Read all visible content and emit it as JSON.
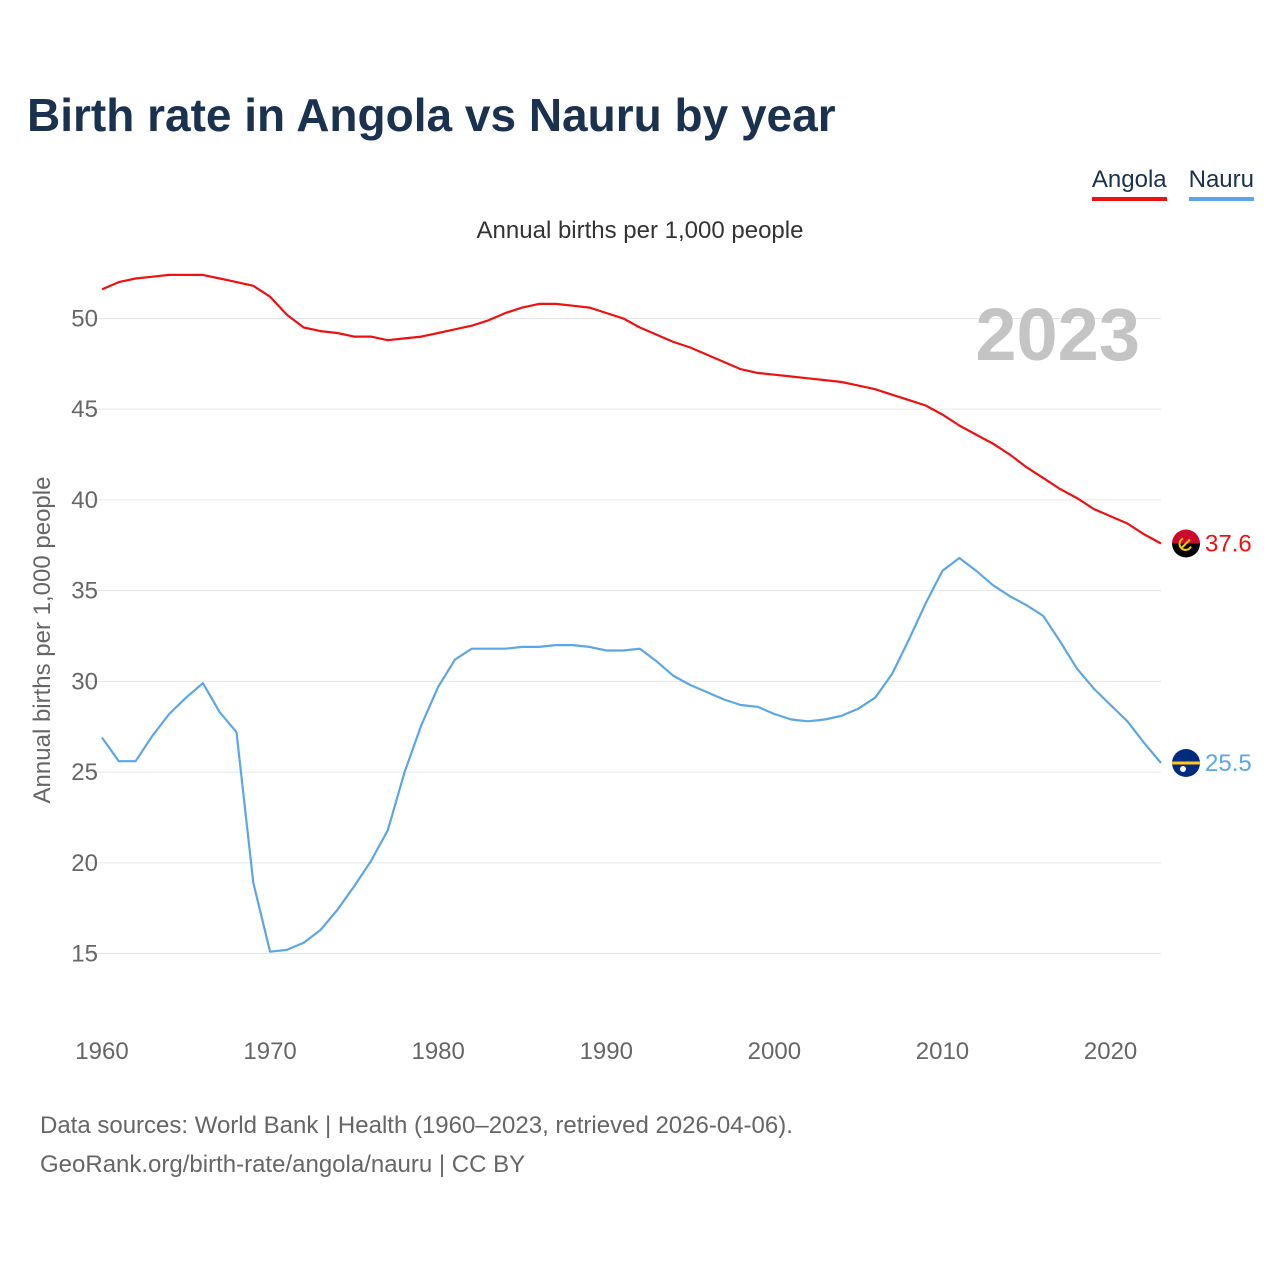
{
  "title": "Birth rate in Angola vs Nauru by year",
  "legend": [
    {
      "label": "Angola",
      "color": "#ee1111"
    },
    {
      "label": "Nauru",
      "color": "#5ba6e8"
    }
  ],
  "year_watermark": "2023",
  "footer": {
    "line1": "Data sources: World Bank | Health (1960–2023, retrieved 2026-04-06).",
    "line2": "GeoRank.org/birth-rate/angola/nauru | CC BY"
  },
  "chart_data": {
    "type": "line",
    "title": "Birth rate in Angola vs Nauru by year",
    "subtitle": "Annual births per 1,000 people",
    "xlabel": "",
    "ylabel": "Annual births per 1,000 people",
    "xlim": [
      1960,
      2023
    ],
    "ylim": [
      12,
      53
    ],
    "x_ticks": [
      1960,
      1970,
      1980,
      1990,
      2000,
      2010,
      2020
    ],
    "y_ticks": [
      15,
      20,
      25,
      30,
      35,
      40,
      45,
      50
    ],
    "grid": true,
    "x": [
      1960,
      1961,
      1962,
      1963,
      1964,
      1965,
      1966,
      1967,
      1968,
      1969,
      1970,
      1971,
      1972,
      1973,
      1974,
      1975,
      1976,
      1977,
      1978,
      1979,
      1980,
      1981,
      1982,
      1983,
      1984,
      1985,
      1986,
      1987,
      1988,
      1989,
      1990,
      1991,
      1992,
      1993,
      1994,
      1995,
      1996,
      1997,
      1998,
      1999,
      2000,
      2001,
      2002,
      2003,
      2004,
      2005,
      2006,
      2007,
      2008,
      2009,
      2010,
      2011,
      2012,
      2013,
      2014,
      2015,
      2016,
      2017,
      2018,
      2019,
      2020,
      2021,
      2022,
      2023
    ],
    "series": [
      {
        "name": "Angola",
        "color": "#ee1111",
        "end_label": "37.6",
        "values": [
          51.6,
          52.0,
          52.2,
          52.3,
          52.4,
          52.4,
          52.4,
          52.2,
          52.0,
          51.8,
          51.2,
          50.2,
          49.5,
          49.3,
          49.2,
          49.0,
          49.0,
          48.8,
          48.9,
          49.0,
          49.2,
          49.4,
          49.6,
          49.9,
          50.3,
          50.6,
          50.8,
          50.8,
          50.7,
          50.6,
          50.3,
          50.0,
          49.5,
          49.1,
          48.7,
          48.4,
          48.0,
          47.6,
          47.2,
          47.0,
          46.9,
          46.8,
          46.7,
          46.6,
          46.5,
          46.3,
          46.1,
          45.8,
          45.5,
          45.2,
          44.7,
          44.1,
          43.6,
          43.1,
          42.5,
          41.8,
          41.2,
          40.6,
          40.1,
          39.5,
          39.1,
          38.7,
          38.1,
          37.6
        ]
      },
      {
        "name": "Nauru",
        "color": "#5ba6e8",
        "end_label": "25.5",
        "values": [
          26.9,
          25.6,
          25.6,
          27.0,
          28.2,
          29.1,
          29.9,
          28.3,
          27.2,
          18.9,
          15.1,
          15.2,
          15.6,
          16.3,
          17.4,
          18.7,
          20.1,
          21.8,
          25.0,
          27.6,
          29.7,
          31.2,
          31.8,
          31.8,
          31.8,
          31.9,
          31.9,
          32.0,
          32.0,
          31.9,
          31.7,
          31.7,
          31.8,
          31.1,
          30.3,
          29.8,
          29.4,
          29.0,
          28.7,
          28.6,
          28.2,
          27.9,
          27.8,
          27.9,
          28.1,
          28.5,
          29.1,
          30.4,
          32.3,
          34.3,
          36.1,
          36.8,
          36.1,
          35.3,
          34.7,
          34.2,
          33.6,
          32.2,
          30.7,
          29.6,
          28.7,
          27.8,
          26.6,
          25.5
        ]
      }
    ]
  }
}
